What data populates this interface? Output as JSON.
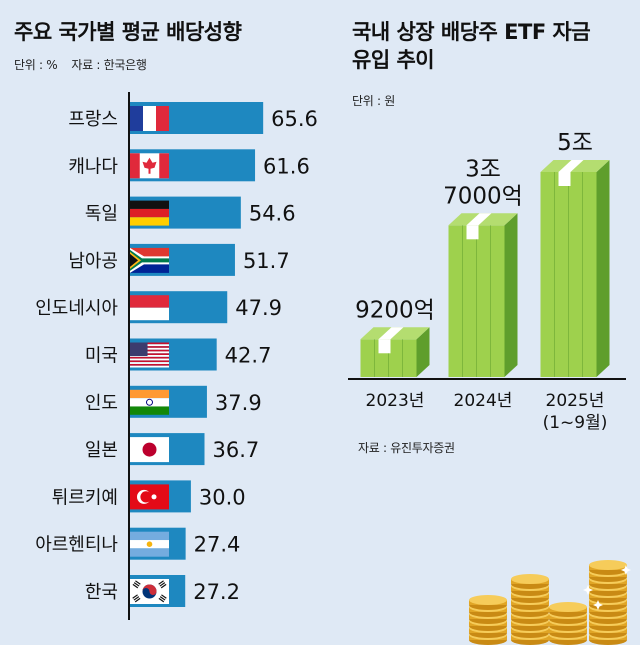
{
  "left": {
    "title": "주요 국가별 평균 배당성향",
    "unit": "단위 : %",
    "source": "자료 : 한국은행"
  },
  "right": {
    "title_line1": "국내 상장 배당주 ETF 자금",
    "title_line2": "유입 추이",
    "unit": "단위 : 원",
    "source": "자료 : 유진투자증권"
  },
  "colors": {
    "background": "#dfe9f5",
    "bar": "#1e88c0",
    "money_light": "#9ed14d",
    "money_dark": "#5f9e2c",
    "band": "#ffffff"
  },
  "chart_data": [
    {
      "type": "bar",
      "orientation": "horizontal",
      "title": "주요 국가별 평균 배당성향",
      "unit": "%",
      "categories": [
        "프랑스",
        "캐나다",
        "독일",
        "남아공",
        "인도네시아",
        "미국",
        "인도",
        "일본",
        "튀르키예",
        "아르헨티나",
        "한국"
      ],
      "values": [
        65.6,
        61.6,
        54.6,
        51.7,
        47.9,
        42.7,
        37.9,
        36.7,
        30.0,
        27.4,
        27.2
      ],
      "value_labels": [
        "65.6",
        "61.6",
        "54.6",
        "51.7",
        "47.9",
        "42.7",
        "37.9",
        "36.7",
        "30.0",
        "27.4",
        "27.2"
      ],
      "flags": [
        "france-flag-icon",
        "canada-flag-icon",
        "germany-flag-icon",
        "south-africa-flag-icon",
        "indonesia-flag-icon",
        "usa-flag-icon",
        "india-flag-icon",
        "japan-flag-icon",
        "turkey-flag-icon",
        "argentina-flag-icon",
        "korea-flag-icon"
      ]
    },
    {
      "type": "bar",
      "title": "국내 상장 배당주 ETF 자금 유입 추이",
      "unit": "원",
      "categories": [
        "2023년",
        "2024년",
        "2025년"
      ],
      "category_sublabels": [
        "",
        "",
        "(1~9월)"
      ],
      "values_krw_100m": [
        9200,
        37000,
        50000
      ],
      "value_labels": [
        [
          "9200억"
        ],
        [
          "3조",
          "7000억"
        ],
        [
          "5조"
        ]
      ]
    }
  ]
}
